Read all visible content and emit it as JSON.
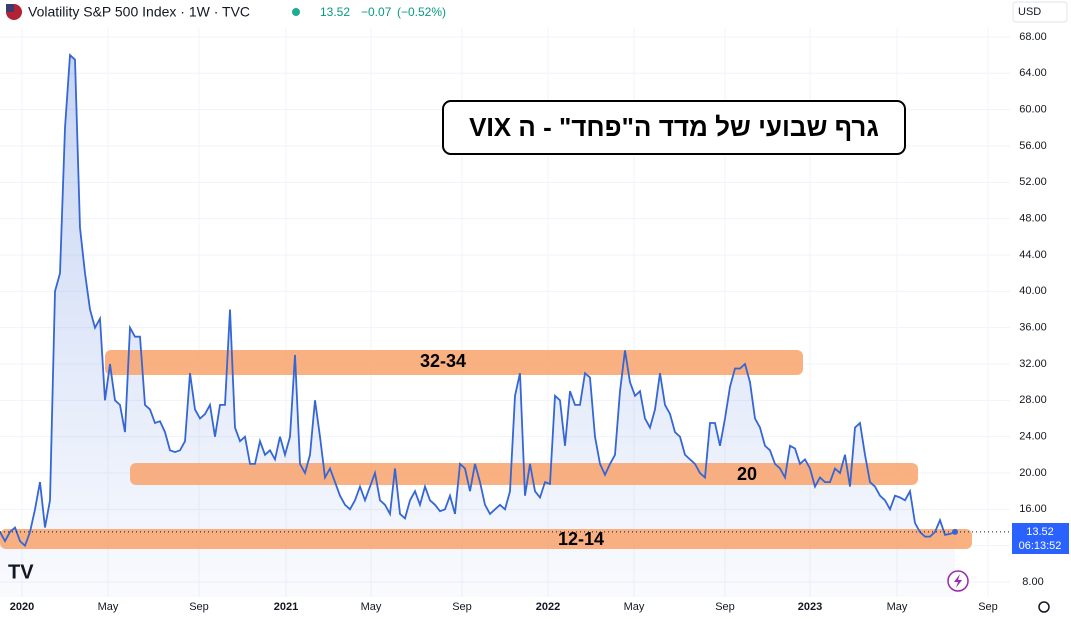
{
  "chart_data": {
    "type": "area",
    "title": "Volatility S&P 500 Index · 1W · TVC",
    "quote": {
      "price": "13.52",
      "change": "−0.07",
      "change_pct": "(−0.52%)"
    },
    "currency": "USD",
    "price_label": "13.52",
    "countdown": "06:13:52",
    "annotation_title": "גרף שבועי של מדד ה\"פחד\" - ה VIX",
    "band_labels": [
      "32-34",
      "20",
      "12-14"
    ],
    "series": [
      {
        "color": "#3566d6",
        "values": [
          13.5,
          12.5,
          13.5,
          14,
          12.5,
          12,
          13.5,
          16,
          19,
          14,
          17,
          40,
          42,
          58,
          66,
          65.5,
          47,
          42,
          38,
          36,
          37,
          28,
          32,
          28,
          27.5,
          24.5,
          36,
          35,
          35,
          27.5,
          27,
          25.5,
          25.7,
          24.5,
          22.5,
          22.3,
          22.5,
          23.5,
          31,
          27,
          26,
          26.5,
          27.5,
          24,
          27.5,
          27.5,
          38,
          25,
          23.5,
          24,
          21,
          21,
          23.5,
          22,
          22.5,
          21.5,
          24,
          22,
          24,
          33,
          21,
          20,
          22,
          28,
          24,
          19.5,
          20.5,
          19,
          17.5,
          16.5,
          16,
          17,
          18.5,
          17,
          18.5,
          20,
          17,
          16.5,
          15.5,
          20.5,
          15.5,
          15,
          17,
          18,
          16.5,
          18.5,
          17,
          16.5,
          15.8,
          16,
          17.5,
          15.5,
          21,
          20.5,
          18,
          21,
          19,
          16.5,
          15.5,
          16,
          16.5,
          16,
          18,
          28.5,
          31,
          17.5,
          21,
          18,
          17.3,
          19,
          18.8,
          28.5,
          28,
          23,
          29,
          27.5,
          27.5,
          31,
          30.5,
          24,
          21,
          19.8,
          21,
          22,
          29,
          33.5,
          30,
          28.5,
          29,
          26,
          25,
          27,
          31,
          27.5,
          26.5,
          24.5,
          24,
          22,
          21.5,
          21,
          20,
          19.5,
          25.5,
          25.5,
          23,
          26,
          29.5,
          31.5,
          31.5,
          32,
          30,
          26,
          25,
          23,
          22.5,
          21,
          20.5,
          19.5,
          23,
          22.7,
          21,
          21.5,
          20.5,
          18.5,
          19.5,
          19,
          19,
          20.5,
          20,
          22,
          18.5,
          25,
          25.5,
          22,
          19,
          18.5,
          17.5,
          17,
          16,
          17.5,
          17.3,
          17,
          18,
          14.5,
          13.5,
          13,
          13,
          13.5,
          14.8,
          13.2,
          13.3,
          13.52
        ]
      }
    ],
    "xlim": [
      0,
      202
    ],
    "xticks": [
      {
        "value": 4.4,
        "label": "2020"
      },
      {
        "value": 21.6,
        "label": "May"
      },
      {
        "value": 39.8,
        "label": "Sep"
      },
      {
        "value": 57.2,
        "label": "2021"
      },
      {
        "value": 74.2,
        "label": "May"
      },
      {
        "value": 92.4,
        "label": "Sep"
      },
      {
        "value": 109.6,
        "label": "2022"
      },
      {
        "value": 126.8,
        "label": "May"
      },
      {
        "value": 145,
        "label": "Sep"
      },
      {
        "value": 162,
        "label": "2023"
      },
      {
        "value": 179.4,
        "label": "May"
      },
      {
        "value": 197.6,
        "label": "Sep"
      }
    ],
    "ylim": [
      6.35,
      72.07
    ],
    "yticks": [
      {
        "value": 8,
        "label": "8.00"
      },
      {
        "value": 12,
        "label": "12.00"
      },
      {
        "value": 16,
        "label": "16.00"
      },
      {
        "value": 20,
        "label": "20.00"
      },
      {
        "value": 24,
        "label": "24.00"
      },
      {
        "value": 28,
        "label": "28.00"
      },
      {
        "value": 32,
        "label": "32.00"
      },
      {
        "value": 36,
        "label": "36.00"
      },
      {
        "value": 40,
        "label": "40.00"
      },
      {
        "value": 44,
        "label": "44.00"
      },
      {
        "value": 48,
        "label": "48.00"
      },
      {
        "value": 52,
        "label": "52.00"
      },
      {
        "value": 56,
        "label": "56.00"
      },
      {
        "value": 60,
        "label": "60.00"
      },
      {
        "value": 64,
        "label": "64.00"
      },
      {
        "value": 68,
        "label": "68.00"
      }
    ],
    "grid": true
  }
}
